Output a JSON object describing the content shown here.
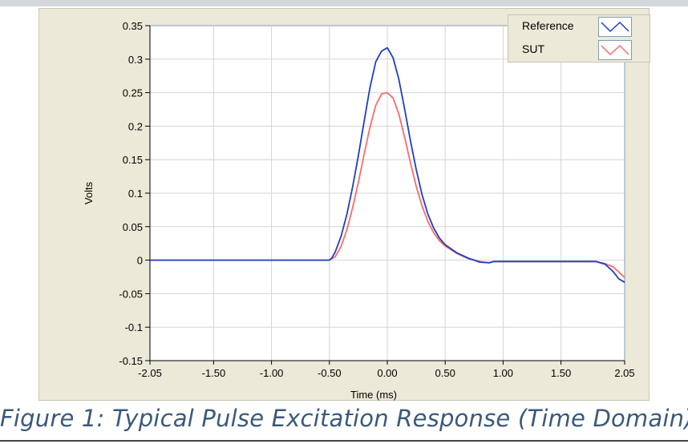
{
  "caption": "Figure 1: Typical Pulse Excitation Response (Time Domain)",
  "colors": {
    "reference": "#1f3fc4",
    "sut": "#ff6a6a",
    "grid": "#d4d4d4",
    "panel": "#ece9d8",
    "caption": "#3b5a7a"
  },
  "legend": {
    "items": [
      {
        "label": "Reference",
        "color": "#1f3fc4"
      },
      {
        "label": "SUT",
        "color": "#ff6a6a"
      }
    ]
  },
  "chart_data": {
    "type": "line",
    "title": "",
    "xlabel": "Time (ms)",
    "ylabel": "Volts",
    "xlim": [
      -2.05,
      2.05
    ],
    "ylim": [
      -0.15,
      0.35
    ],
    "grid": true,
    "legend_position": "top-right",
    "xticks": [
      "-2.05",
      "-1.50",
      "-1.00",
      "-0.50",
      "0.00",
      "0.50",
      "1.00",
      "1.50",
      "2.05"
    ],
    "xtick_values": [
      -2.05,
      -1.5,
      -1.0,
      -0.5,
      0.0,
      0.5,
      1.0,
      1.5,
      2.05
    ],
    "yticks": [
      "0.35",
      "0.3",
      "0.25",
      "0.2",
      "0.15",
      "0.1",
      "0.05",
      "0",
      "-0.05",
      "-0.1",
      "-0.15"
    ],
    "ytick_values": [
      0.35,
      0.3,
      0.25,
      0.2,
      0.15,
      0.1,
      0.05,
      0.0,
      -0.05,
      -0.1,
      -0.15
    ],
    "series": [
      {
        "name": "Reference",
        "color": "#1f3fc4",
        "x": [
          -2.05,
          -0.5,
          -0.48,
          -0.45,
          -0.4,
          -0.35,
          -0.3,
          -0.25,
          -0.2,
          -0.15,
          -0.1,
          -0.05,
          0.0,
          0.05,
          0.1,
          0.15,
          0.2,
          0.25,
          0.3,
          0.35,
          0.4,
          0.45,
          0.5,
          0.6,
          0.7,
          0.8,
          0.88,
          0.92,
          1.0,
          1.8,
          1.88,
          1.95,
          2.0,
          2.05
        ],
        "y": [
          0.0,
          0.0,
          0.003,
          0.012,
          0.035,
          0.068,
          0.109,
          0.156,
          0.207,
          0.257,
          0.296,
          0.312,
          0.317,
          0.302,
          0.27,
          0.225,
          0.178,
          0.135,
          0.098,
          0.069,
          0.048,
          0.033,
          0.023,
          0.011,
          0.003,
          -0.003,
          -0.004,
          -0.002,
          -0.002,
          -0.002,
          -0.006,
          -0.017,
          -0.028,
          -0.033
        ]
      },
      {
        "name": "SUT",
        "color": "#ff6a6a",
        "x": [
          -2.05,
          -0.5,
          -0.45,
          -0.4,
          -0.35,
          -0.3,
          -0.25,
          -0.2,
          -0.15,
          -0.1,
          -0.05,
          0.0,
          0.05,
          0.1,
          0.15,
          0.2,
          0.25,
          0.3,
          0.35,
          0.4,
          0.45,
          0.5,
          0.6,
          0.7,
          0.8,
          0.88,
          0.92,
          1.0,
          1.8,
          1.88,
          1.95,
          2.0,
          2.05
        ],
        "y": [
          0.0,
          0.0,
          0.005,
          0.02,
          0.045,
          0.078,
          0.116,
          0.158,
          0.198,
          0.231,
          0.248,
          0.25,
          0.242,
          0.218,
          0.183,
          0.145,
          0.11,
          0.081,
          0.058,
          0.041,
          0.029,
          0.021,
          0.01,
          0.002,
          -0.002,
          -0.004,
          -0.002,
          -0.002,
          -0.002,
          -0.005,
          -0.01,
          -0.018,
          -0.026
        ]
      }
    ]
  }
}
